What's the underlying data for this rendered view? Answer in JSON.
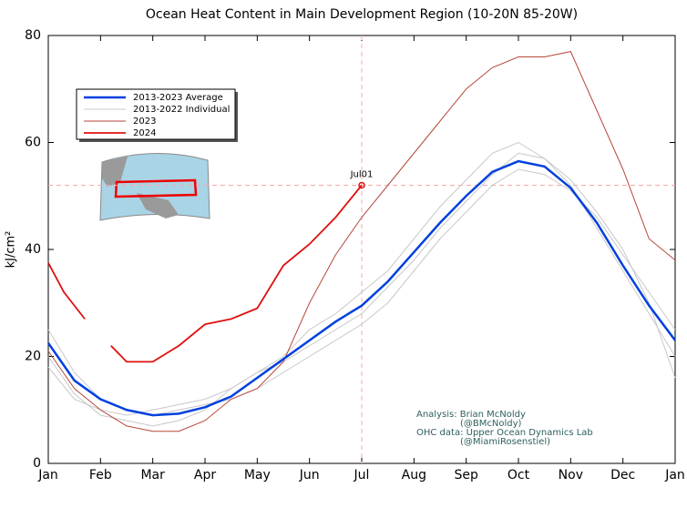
{
  "chart_data": {
    "type": "line",
    "title": "Ocean Heat Content in Main Development Region (10-20N 85-20W)",
    "y_label": "kJ/cm²",
    "x": [
      0,
      0.5,
      1,
      1.5,
      2,
      2.5,
      3,
      3.5,
      4,
      4.5,
      5,
      5.5,
      6,
      6.5,
      7,
      7.5,
      8,
      8.5,
      9,
      9.5,
      10,
      10.5,
      11,
      11.5,
      12
    ],
    "xlim": [
      0,
      12
    ],
    "xticks": [
      {
        "value": 0,
        "label": "Jan"
      },
      {
        "value": 1,
        "label": "Feb"
      },
      {
        "value": 2,
        "label": "Mar"
      },
      {
        "value": 3,
        "label": "Apr"
      },
      {
        "value": 4,
        "label": "May"
      },
      {
        "value": 5,
        "label": "Jun"
      },
      {
        "value": 6,
        "label": "Jul"
      },
      {
        "value": 7,
        "label": "Aug"
      },
      {
        "value": 8,
        "label": "Sep"
      },
      {
        "value": 9,
        "label": "Oct"
      },
      {
        "value": 10,
        "label": "Nov"
      },
      {
        "value": 11,
        "label": "Dec"
      },
      {
        "value": 12,
        "label": "Jan"
      }
    ],
    "ylim": [
      0,
      80
    ],
    "yticks": [
      0,
      20,
      40,
      60,
      80
    ],
    "series": [
      {
        "name": "2013-2022 Individual",
        "color": "#c8c8c8",
        "width": 1,
        "values": [
          20,
          13,
          9,
          8,
          7,
          8,
          10,
          14,
          17,
          20,
          25,
          28,
          32,
          36,
          42,
          48,
          53,
          58,
          60,
          57,
          52,
          44,
          36,
          28,
          20
        ]
      },
      {
        "color": "#c8c8c8",
        "width": 1,
        "values": [
          25,
          17,
          12,
          10,
          9,
          10,
          11,
          12,
          14,
          17,
          20,
          23,
          26,
          30,
          36,
          42,
          47,
          52,
          55,
          54,
          51,
          46,
          39,
          32,
          25
        ]
      },
      {
        "color": "#c8c8c8",
        "width": 1,
        "values": [
          18,
          12,
          10,
          9,
          10,
          11,
          12,
          14,
          17,
          19,
          22,
          25,
          28,
          33,
          38,
          44,
          49,
          54,
          58,
          57,
          53,
          47,
          40,
          30,
          16
        ]
      },
      {
        "name": "2023",
        "color": "#b5483a",
        "width": 1,
        "values": [
          21,
          14,
          10,
          7,
          6,
          6,
          8,
          12,
          14,
          19,
          30,
          39,
          46,
          52,
          58,
          64,
          70,
          74,
          76,
          76,
          77,
          66,
          55,
          42,
          38
        ]
      },
      {
        "name": "2013-2023 Average",
        "color": "#0040e0",
        "width": 2.5,
        "values": [
          22.5,
          15.5,
          12,
          10,
          9,
          9.3,
          10.5,
          12.5,
          16,
          19.5,
          23,
          26.5,
          29.5,
          34,
          39.5,
          45,
          50,
          54.5,
          56.5,
          55.5,
          51.5,
          45,
          37,
          29.5,
          23
        ]
      },
      {
        "name": "2024",
        "color": "#e01010",
        "width": 1.8,
        "x": [
          0,
          0.3,
          0.7,
          0.9,
          1.2,
          1.5,
          2,
          2.5,
          3,
          3.5,
          4,
          4.5,
          5,
          5.5,
          6
        ],
        "values": [
          37.5,
          32,
          27,
          null,
          22,
          19,
          19,
          22,
          26,
          27,
          29,
          37,
          41,
          46,
          52
        ]
      }
    ],
    "legend_order": [
      4,
      0,
      3,
      5
    ],
    "marker": {
      "label": "Jul01",
      "x": 6,
      "y": 52
    },
    "notes": [
      "Analysis: Brian McNoldy",
      "(@BMcNoldy)",
      "OHC data: Upper Ocean Dynamics Lab",
      "(@MiamiRosenstiel)"
    ]
  }
}
